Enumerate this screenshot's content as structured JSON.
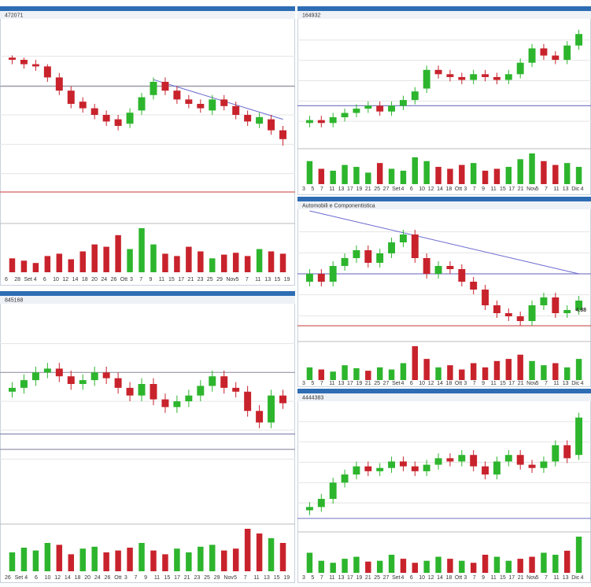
{
  "chart_data": [
    {
      "type": "candlestick",
      "title": "472071",
      "up_color": "#2db52d",
      "down_color": "#c8232c",
      "ylim": [
        15,
        95
      ],
      "open": [
        81,
        80,
        78,
        77,
        72,
        66,
        61,
        58,
        55,
        53,
        51,
        57,
        64,
        70,
        66,
        62,
        60,
        57,
        62,
        59,
        55,
        51,
        53,
        48
      ],
      "high": [
        82,
        81,
        80,
        78,
        74,
        68,
        63,
        60,
        57,
        55,
        58,
        65,
        72,
        72,
        68,
        64,
        62,
        64,
        64,
        61,
        57,
        56,
        55,
        50
      ],
      "low": [
        78,
        76,
        75,
        70,
        64,
        58,
        56,
        53,
        50,
        48,
        49,
        55,
        62,
        64,
        60,
        58,
        56,
        55,
        57,
        53,
        50,
        49,
        46,
        41
      ],
      "close": [
        80,
        78,
        77,
        72,
        66,
        60,
        58,
        55,
        52,
        50,
        56,
        63,
        70,
        66,
        62,
        60,
        58,
        62,
        59,
        55,
        52,
        54,
        48,
        44
      ],
      "volume": [
        30,
        25,
        20,
        35,
        40,
        28,
        45,
        60,
        55,
        80,
        50,
        95,
        60,
        40,
        35,
        55,
        45,
        30,
        38,
        42,
        35,
        50,
        45,
        40
      ],
      "hlines": [
        {
          "value": 68,
          "color": "#9999aa"
        },
        {
          "value": 20,
          "color": "#d06060"
        }
      ],
      "trendline": {
        "start": [
          12,
          71
        ],
        "end": [
          23,
          53
        ]
      },
      "date_labels": [
        "6",
        "28",
        "Set",
        "4",
        "6",
        "10",
        "12",
        "14",
        "18",
        "20",
        "24",
        "26",
        "Ott",
        "3",
        "7",
        "9",
        "11",
        "15",
        "17",
        "21",
        "23",
        "25",
        "29",
        "Nov",
        "5",
        "7",
        "11",
        "13",
        "15",
        "19"
      ]
    },
    {
      "type": "candlestick",
      "title": "845168",
      "up_color": "#2db52d",
      "down_color": "#c8232c",
      "ylim": [
        10,
        100
      ],
      "open": [
        60,
        62,
        66,
        70,
        72,
        68,
        64,
        66,
        70,
        67,
        62,
        58,
        64,
        56,
        52,
        55,
        58,
        63,
        68,
        62,
        60,
        50,
        44,
        58
      ],
      "high": [
        65,
        69,
        73,
        75,
        75,
        71,
        69,
        73,
        73,
        70,
        65,
        67,
        67,
        59,
        58,
        61,
        66,
        71,
        71,
        65,
        63,
        53,
        61,
        61
      ],
      "low": [
        57,
        59,
        63,
        67,
        65,
        61,
        61,
        63,
        64,
        59,
        55,
        55,
        53,
        49,
        49,
        52,
        55,
        60,
        59,
        57,
        47,
        41,
        41,
        51
      ],
      "close": [
        62,
        66,
        70,
        72,
        68,
        64,
        66,
        70,
        67,
        62,
        58,
        64,
        56,
        52,
        55,
        58,
        63,
        68,
        62,
        60,
        50,
        44,
        58,
        54
      ],
      "volume": [
        20,
        25,
        22,
        30,
        28,
        18,
        24,
        26,
        20,
        22,
        25,
        30,
        22,
        18,
        24,
        20,
        26,
        28,
        22,
        24,
        45,
        40,
        35,
        30
      ],
      "hlines": [
        {
          "value": 70,
          "color": "#9999aa"
        },
        {
          "value": 38,
          "color": "#8080b0"
        },
        {
          "value": 30,
          "color": "#9999aa"
        }
      ],
      "date_labels": [
        "26",
        "Set",
        "4",
        "6",
        "10",
        "12",
        "14",
        "18",
        "20",
        "24",
        "26",
        "Ott",
        "3",
        "7",
        "9",
        "11",
        "15",
        "17",
        "21",
        "23",
        "25",
        "29",
        "Nov",
        "5",
        "7",
        "11",
        "13",
        "15",
        "19"
      ]
    },
    {
      "type": "candlestick",
      "title": "164932",
      "up_color": "#2db52d",
      "down_color": "#c8232c",
      "ylim": [
        15,
        100
      ],
      "open": [
        28,
        30,
        28,
        32,
        35,
        38,
        40,
        36,
        40,
        44,
        52,
        65,
        62,
        60,
        58,
        62,
        60,
        58,
        62,
        70,
        80,
        75,
        72,
        82
      ],
      "high": [
        33,
        33,
        35,
        38,
        41,
        43,
        43,
        43,
        47,
        53,
        68,
        68,
        65,
        63,
        65,
        65,
        63,
        65,
        73,
        83,
        83,
        78,
        85,
        93
      ],
      "low": [
        25,
        25,
        25,
        29,
        32,
        35,
        33,
        33,
        37,
        41,
        49,
        59,
        57,
        55,
        55,
        57,
        55,
        55,
        59,
        67,
        72,
        69,
        69,
        79
      ],
      "close": [
        30,
        28,
        32,
        35,
        38,
        40,
        36,
        40,
        44,
        50,
        65,
        62,
        60,
        58,
        62,
        60,
        58,
        62,
        70,
        80,
        75,
        72,
        82,
        90
      ],
      "volume": [
        60,
        40,
        35,
        50,
        45,
        30,
        55,
        40,
        35,
        70,
        60,
        45,
        40,
        50,
        55,
        35,
        40,
        45,
        65,
        80,
        60,
        50,
        55,
        45
      ],
      "hlines": [
        {
          "value": 40,
          "color": "#8080c8"
        }
      ],
      "date_labels": [
        "3",
        "5",
        "7",
        "11",
        "13",
        "17",
        "19",
        "21",
        "25",
        "27",
        "Set",
        "4",
        "6",
        "10",
        "12",
        "14",
        "18",
        "Ott",
        "3",
        "7",
        "9",
        "11",
        "15",
        "17",
        "21",
        "Nov",
        "5",
        "7",
        "11",
        "13",
        "Dic",
        "4"
      ]
    },
    {
      "type": "candlestick",
      "title": "Automobili e Componentistica",
      "up_color": "#2db52d",
      "down_color": "#c8232c",
      "ylim": [
        4.65,
        5.45
      ],
      "open": [
        5.0,
        5.05,
        5.0,
        5.1,
        5.15,
        5.2,
        5.12,
        5.18,
        5.25,
        5.3,
        5.15,
        5.05,
        5.1,
        5.08,
        5.0,
        4.95,
        4.85,
        4.8,
        4.78,
        4.75,
        4.85,
        4.9,
        4.8,
        4.82
      ],
      "high": [
        5.08,
        5.08,
        5.13,
        5.18,
        5.23,
        5.23,
        5.21,
        5.28,
        5.33,
        5.33,
        5.18,
        5.13,
        5.13,
        5.11,
        5.03,
        4.98,
        4.88,
        4.83,
        4.81,
        4.88,
        4.93,
        4.93,
        4.85,
        4.91
      ],
      "low": [
        4.97,
        4.97,
        4.97,
        5.07,
        5.12,
        5.09,
        5.09,
        5.15,
        5.22,
        5.12,
        5.02,
        5.02,
        5.05,
        4.97,
        4.92,
        4.82,
        4.77,
        4.75,
        4.72,
        4.72,
        4.82,
        4.77,
        4.77,
        4.79
      ],
      "close": [
        5.05,
        5.0,
        5.1,
        5.15,
        5.2,
        5.12,
        5.18,
        5.25,
        5.3,
        5.15,
        5.05,
        5.1,
        5.08,
        5.0,
        4.95,
        4.85,
        4.8,
        4.78,
        4.75,
        4.85,
        4.9,
        4.8,
        4.82,
        4.88
      ],
      "volume": [
        30,
        25,
        20,
        35,
        28,
        22,
        30,
        25,
        40,
        80,
        50,
        30,
        35,
        25,
        40,
        30,
        45,
        50,
        60,
        45,
        35,
        40,
        30,
        50
      ],
      "hlines": [
        {
          "value": 5.05,
          "color": "#8080c8"
        },
        {
          "value": 4.72,
          "color": "#d06060"
        }
      ],
      "trendline": {
        "start": [
          0,
          5.45
        ],
        "end": [
          23,
          5.05
        ]
      },
      "last_price": 4.88,
      "date_labels": [
        "3",
        "5",
        "7",
        "11",
        "13",
        "17",
        "19",
        "21",
        "25",
        "27",
        "Set",
        "4",
        "6",
        "10",
        "12",
        "14",
        "18",
        "Ott",
        "3",
        "7",
        "9",
        "11",
        "15",
        "17",
        "21",
        "Nov",
        "5",
        "7",
        "11",
        "13",
        "Dic",
        "4"
      ]
    },
    {
      "type": "candlestick",
      "title": "4444383",
      "up_color": "#2db52d",
      "down_color": "#c8232c",
      "ylim": [
        20,
        95
      ],
      "open": [
        28,
        30,
        35,
        45,
        50,
        55,
        52,
        54,
        58,
        55,
        52,
        56,
        60,
        58,
        62,
        55,
        50,
        58,
        62,
        56,
        54,
        58,
        68,
        62
      ],
      "high": [
        33,
        38,
        48,
        53,
        58,
        58,
        57,
        61,
        61,
        58,
        59,
        63,
        63,
        65,
        65,
        58,
        61,
        65,
        65,
        59,
        61,
        71,
        71,
        88
      ],
      "low": [
        25,
        27,
        32,
        42,
        47,
        49,
        49,
        51,
        52,
        49,
        49,
        53,
        55,
        55,
        52,
        47,
        47,
        55,
        53,
        51,
        51,
        55,
        57,
        59
      ],
      "close": [
        30,
        35,
        45,
        50,
        55,
        52,
        54,
        58,
        55,
        52,
        56,
        60,
        58,
        62,
        55,
        50,
        58,
        62,
        56,
        54,
        58,
        68,
        60,
        85
      ],
      "volume": [
        50,
        30,
        25,
        35,
        40,
        28,
        30,
        45,
        35,
        25,
        30,
        40,
        35,
        30,
        25,
        45,
        40,
        30,
        35,
        40,
        50,
        45,
        55,
        90
      ],
      "hlines": [
        {
          "value": 23,
          "color": "#8080c8"
        }
      ],
      "date_labels": [
        "3",
        "5",
        "7",
        "11",
        "13",
        "17",
        "19",
        "21",
        "25",
        "27",
        "Set",
        "4",
        "6",
        "10",
        "12",
        "14",
        "18",
        "Ott",
        "3",
        "7",
        "9",
        "11",
        "15",
        "17",
        "21",
        "Nov",
        "5",
        "7",
        "11",
        "13",
        "Dic",
        "4"
      ]
    }
  ]
}
